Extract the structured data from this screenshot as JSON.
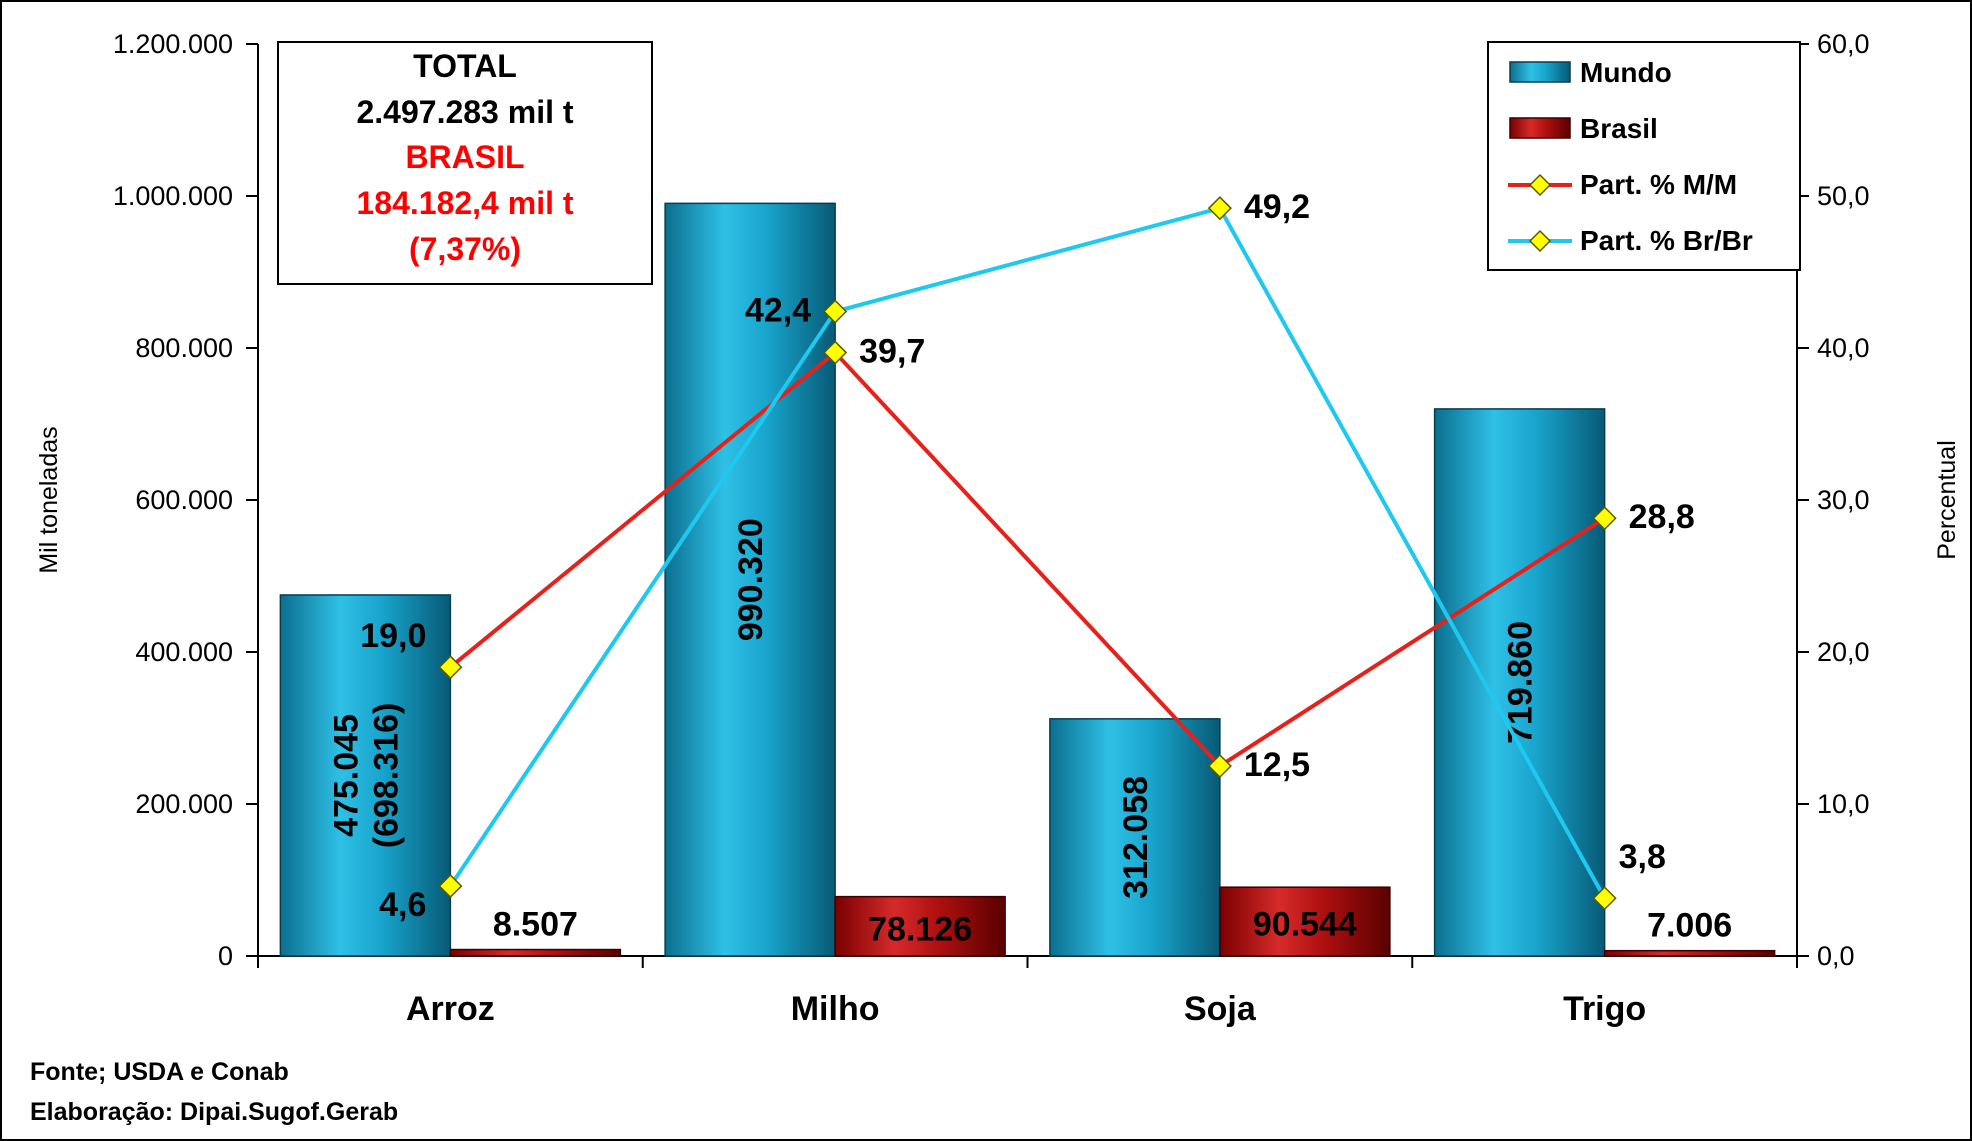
{
  "chart_data": {
    "type": "bar",
    "categories": [
      "Arroz",
      "Milho",
      "Soja",
      "Trigo"
    ],
    "series": [
      {
        "name": "Mundo",
        "axis": "left",
        "values": [
          475045,
          990320,
          312058,
          719860
        ],
        "labels": [
          "475.045\n(698.316)",
          "990.320",
          "312.058",
          "719.860"
        ],
        "color": "#1a9ec4"
      },
      {
        "name": "Brasil",
        "axis": "left",
        "values": [
          8507,
          78126,
          90544,
          7006
        ],
        "labels": [
          "8.507",
          "78.126",
          "90.544",
          "7.006"
        ],
        "color": "#b01010"
      },
      {
        "name": "Part. % M/M",
        "type": "line",
        "axis": "right",
        "values": [
          19.0,
          39.7,
          12.5,
          28.8
        ],
        "labels": [
          "19,0",
          "39,7",
          "12,5",
          "28,8"
        ],
        "color": "#e8201a"
      },
      {
        "name": "Part. % Br/Br",
        "type": "line",
        "axis": "right",
        "values": [
          4.6,
          42.4,
          49.2,
          3.8
        ],
        "labels": [
          "4,6",
          "42,4",
          "49,2",
          "3,8"
        ],
        "color": "#1ec8f0"
      }
    ],
    "ylabel": "Mil toneladas",
    "ylabel_right": "Percentual",
    "ylim": [
      0,
      1200000
    ],
    "ylim_right": [
      0,
      60
    ],
    "yticks": [
      "0",
      "200.000",
      "400.000",
      "600.000",
      "800.000",
      "1.000.000",
      "1.200.000"
    ],
    "yticks_right": [
      "0,0",
      "10,0",
      "20,0",
      "30,0",
      "40,0",
      "50,0",
      "60,0"
    ],
    "grid": false,
    "legend_position": "top-right"
  },
  "info_box": {
    "line1": "TOTAL",
    "line2": "2.497.283 mil t",
    "line3": "BRASIL",
    "line4": "184.182,4 mil t",
    "line5": "(7,37%)"
  },
  "source": {
    "line1": "Fonte; USDA e Conab",
    "line2": "Elaboração: Dipai.Sugof.Gerab"
  },
  "colors": {
    "mundo": "#1a9ec4",
    "brasil": "#b01010",
    "mm_line": "#e8201a",
    "brbr_line": "#1ec8f0",
    "marker": "#ffff00",
    "box_red": "#ff0000"
  }
}
